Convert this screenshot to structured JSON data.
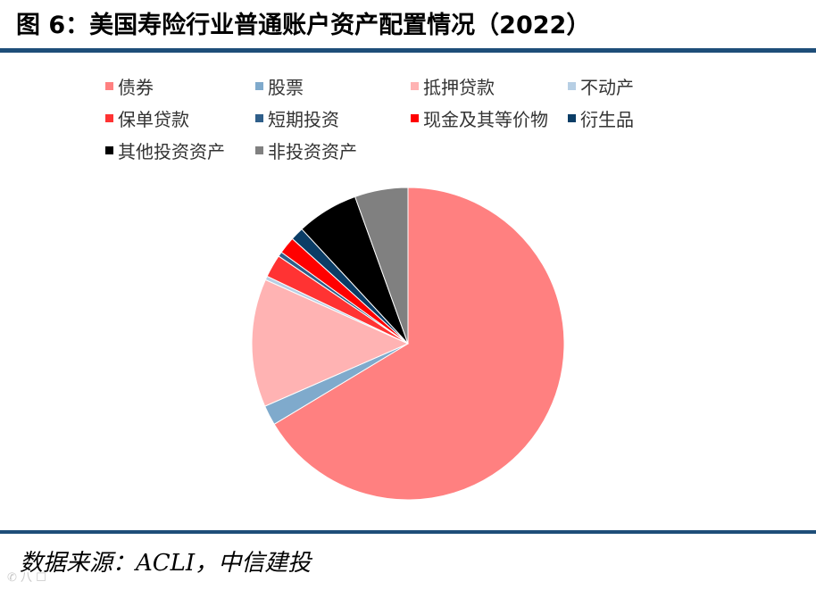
{
  "title": "图 6：美国寿险行业普通账户资产配置情况（2022）",
  "source": "数据来源：ACLI，中信建投",
  "chart_data": {
    "type": "pie",
    "start_angle_deg": 0,
    "direction": "clockwise",
    "slices": [
      {
        "label": "债券",
        "value": 67.5,
        "color": "#ff8080"
      },
      {
        "label": "股票",
        "value": 2.1,
        "color": "#7faacc"
      },
      {
        "label": "抵押贷款",
        "value": 13.5,
        "color": "#ffb3b3"
      },
      {
        "label": "不动产",
        "value": 0.4,
        "color": "#b7cfe4"
      },
      {
        "label": "保单贷款",
        "value": 2.4,
        "color": "#ff3333"
      },
      {
        "label": "短期投资",
        "value": 0.5,
        "color": "#2f5f8a"
      },
      {
        "label": "现金及其等价物",
        "value": 1.8,
        "color": "#ff0000"
      },
      {
        "label": "衍生品",
        "value": 1.4,
        "color": "#0b3d66"
      },
      {
        "label": "其他投资资产",
        "value": 6.5,
        "color": "#000000"
      },
      {
        "label": "非投资资产",
        "value": 5.6,
        "color": "#808080"
      }
    ],
    "legend_position": "top"
  }
}
